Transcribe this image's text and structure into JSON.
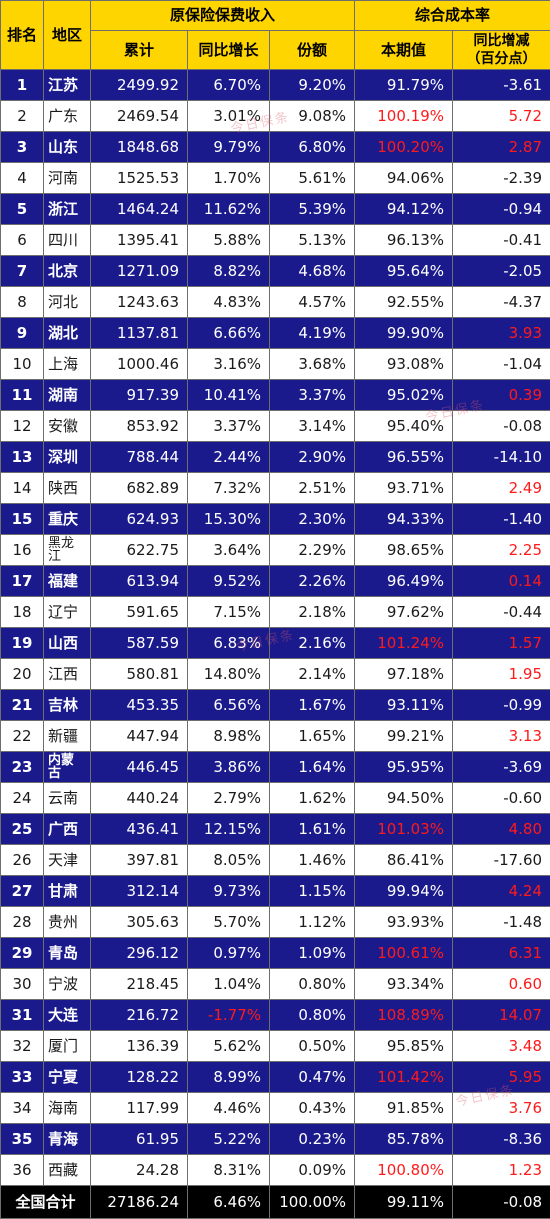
{
  "header": {
    "rank": "排名",
    "region": "地区",
    "premium_group": "原保险保费收入",
    "cost_group": "综合成本率",
    "cumulative": "累计",
    "yoy_growth": "同比增长",
    "share": "份额",
    "current": "本期值",
    "yoy_change_line1": "同比增减",
    "yoy_change_line2": "（百分点）"
  },
  "rows": [
    {
      "rank": "1",
      "region": "江苏",
      "premium": "2499.92",
      "growth": "6.70%",
      "share": "9.20%",
      "cost": "91.79%",
      "change": "-3.61"
    },
    {
      "rank": "2",
      "region": "广东",
      "premium": "2469.54",
      "growth": "3.01%",
      "share": "9.08%",
      "cost": "100.19%",
      "change": "5.72"
    },
    {
      "rank": "3",
      "region": "山东",
      "premium": "1848.68",
      "growth": "9.79%",
      "share": "6.80%",
      "cost": "100.20%",
      "change": "2.87"
    },
    {
      "rank": "4",
      "region": "河南",
      "premium": "1525.53",
      "growth": "1.70%",
      "share": "5.61%",
      "cost": "94.06%",
      "change": "-2.39"
    },
    {
      "rank": "5",
      "region": "浙江",
      "premium": "1464.24",
      "growth": "11.62%",
      "share": "5.39%",
      "cost": "94.12%",
      "change": "-0.94"
    },
    {
      "rank": "6",
      "region": "四川",
      "premium": "1395.41",
      "growth": "5.88%",
      "share": "5.13%",
      "cost": "96.13%",
      "change": "-0.41"
    },
    {
      "rank": "7",
      "region": "北京",
      "premium": "1271.09",
      "growth": "8.82%",
      "share": "4.68%",
      "cost": "95.64%",
      "change": "-2.05"
    },
    {
      "rank": "8",
      "region": "河北",
      "premium": "1243.63",
      "growth": "4.83%",
      "share": "4.57%",
      "cost": "92.55%",
      "change": "-4.37"
    },
    {
      "rank": "9",
      "region": "湖北",
      "premium": "1137.81",
      "growth": "6.66%",
      "share": "4.19%",
      "cost": "99.90%",
      "change": "3.93"
    },
    {
      "rank": "10",
      "region": "上海",
      "premium": "1000.46",
      "growth": "3.16%",
      "share": "3.68%",
      "cost": "93.08%",
      "change": "-1.04"
    },
    {
      "rank": "11",
      "region": "湖南",
      "premium": "917.39",
      "growth": "10.41%",
      "share": "3.37%",
      "cost": "95.02%",
      "change": "0.39"
    },
    {
      "rank": "12",
      "region": "安徽",
      "premium": "853.92",
      "growth": "3.37%",
      "share": "3.14%",
      "cost": "95.40%",
      "change": "-0.08"
    },
    {
      "rank": "13",
      "region": "深圳",
      "premium": "788.44",
      "growth": "2.44%",
      "share": "2.90%",
      "cost": "96.55%",
      "change": "-14.10"
    },
    {
      "rank": "14",
      "region": "陕西",
      "premium": "682.89",
      "growth": "7.32%",
      "share": "2.51%",
      "cost": "93.71%",
      "change": "2.49"
    },
    {
      "rank": "15",
      "region": "重庆",
      "premium": "624.93",
      "growth": "15.30%",
      "share": "2.30%",
      "cost": "94.33%",
      "change": "-1.40"
    },
    {
      "rank": "16",
      "region": "黑龙江",
      "premium": "622.75",
      "growth": "3.64%",
      "share": "2.29%",
      "cost": "98.65%",
      "change": "2.25"
    },
    {
      "rank": "17",
      "region": "福建",
      "premium": "613.94",
      "growth": "9.52%",
      "share": "2.26%",
      "cost": "96.49%",
      "change": "0.14"
    },
    {
      "rank": "18",
      "region": "辽宁",
      "premium": "591.65",
      "growth": "7.15%",
      "share": "2.18%",
      "cost": "97.62%",
      "change": "-0.44"
    },
    {
      "rank": "19",
      "region": "山西",
      "premium": "587.59",
      "growth": "6.83%",
      "share": "2.16%",
      "cost": "101.24%",
      "change": "1.57"
    },
    {
      "rank": "20",
      "region": "江西",
      "premium": "580.81",
      "growth": "14.80%",
      "share": "2.14%",
      "cost": "97.18%",
      "change": "1.95"
    },
    {
      "rank": "21",
      "region": "吉林",
      "premium": "453.35",
      "growth": "6.56%",
      "share": "1.67%",
      "cost": "93.11%",
      "change": "-0.99"
    },
    {
      "rank": "22",
      "region": "新疆",
      "premium": "447.94",
      "growth": "8.98%",
      "share": "1.65%",
      "cost": "99.21%",
      "change": "3.13"
    },
    {
      "rank": "23",
      "region": "内蒙古",
      "premium": "446.45",
      "growth": "3.86%",
      "share": "1.64%",
      "cost": "95.95%",
      "change": "-3.69"
    },
    {
      "rank": "24",
      "region": "云南",
      "premium": "440.24",
      "growth": "2.79%",
      "share": "1.62%",
      "cost": "94.50%",
      "change": "-0.60"
    },
    {
      "rank": "25",
      "region": "广西",
      "premium": "436.41",
      "growth": "12.15%",
      "share": "1.61%",
      "cost": "101.03%",
      "change": "4.80"
    },
    {
      "rank": "26",
      "region": "天津",
      "premium": "397.81",
      "growth": "8.05%",
      "share": "1.46%",
      "cost": "86.41%",
      "change": "-17.60"
    },
    {
      "rank": "27",
      "region": "甘肃",
      "premium": "312.14",
      "growth": "9.73%",
      "share": "1.15%",
      "cost": "99.94%",
      "change": "4.24"
    },
    {
      "rank": "28",
      "region": "贵州",
      "premium": "305.63",
      "growth": "5.70%",
      "share": "1.12%",
      "cost": "93.93%",
      "change": "-1.48"
    },
    {
      "rank": "29",
      "region": "青岛",
      "premium": "296.12",
      "growth": "0.97%",
      "share": "1.09%",
      "cost": "100.61%",
      "change": "6.31"
    },
    {
      "rank": "30",
      "region": "宁波",
      "premium": "218.45",
      "growth": "1.04%",
      "share": "0.80%",
      "cost": "93.34%",
      "change": "0.60"
    },
    {
      "rank": "31",
      "region": "大连",
      "premium": "216.72",
      "growth": "-1.77%",
      "share": "0.80%",
      "cost": "108.89%",
      "change": "14.07"
    },
    {
      "rank": "32",
      "region": "厦门",
      "premium": "136.39",
      "growth": "5.62%",
      "share": "0.50%",
      "cost": "95.85%",
      "change": "3.48"
    },
    {
      "rank": "33",
      "region": "宁夏",
      "premium": "128.22",
      "growth": "8.99%",
      "share": "0.47%",
      "cost": "101.42%",
      "change": "5.95"
    },
    {
      "rank": "34",
      "region": "海南",
      "premium": "117.99",
      "growth": "4.46%",
      "share": "0.43%",
      "cost": "91.85%",
      "change": "3.76"
    },
    {
      "rank": "35",
      "region": "青海",
      "premium": "61.95",
      "growth": "5.22%",
      "share": "0.23%",
      "cost": "85.78%",
      "change": "-8.36"
    },
    {
      "rank": "36",
      "region": "西藏",
      "premium": "24.28",
      "growth": "8.31%",
      "share": "0.09%",
      "cost": "100.80%",
      "change": "1.23"
    }
  ],
  "total": {
    "label": "全国合计",
    "premium": "27186.24",
    "growth": "6.46%",
    "share": "100.00%",
    "cost": "99.11%",
    "change": "-0.08"
  },
  "colors": {
    "header_bg": "#ffd500",
    "dark_row_bg": "#1a1a8c",
    "light_row_bg": "#ffffff",
    "total_bg": "#000000",
    "highlight_red": "#ff1a1a"
  },
  "watermark": "今日保条"
}
